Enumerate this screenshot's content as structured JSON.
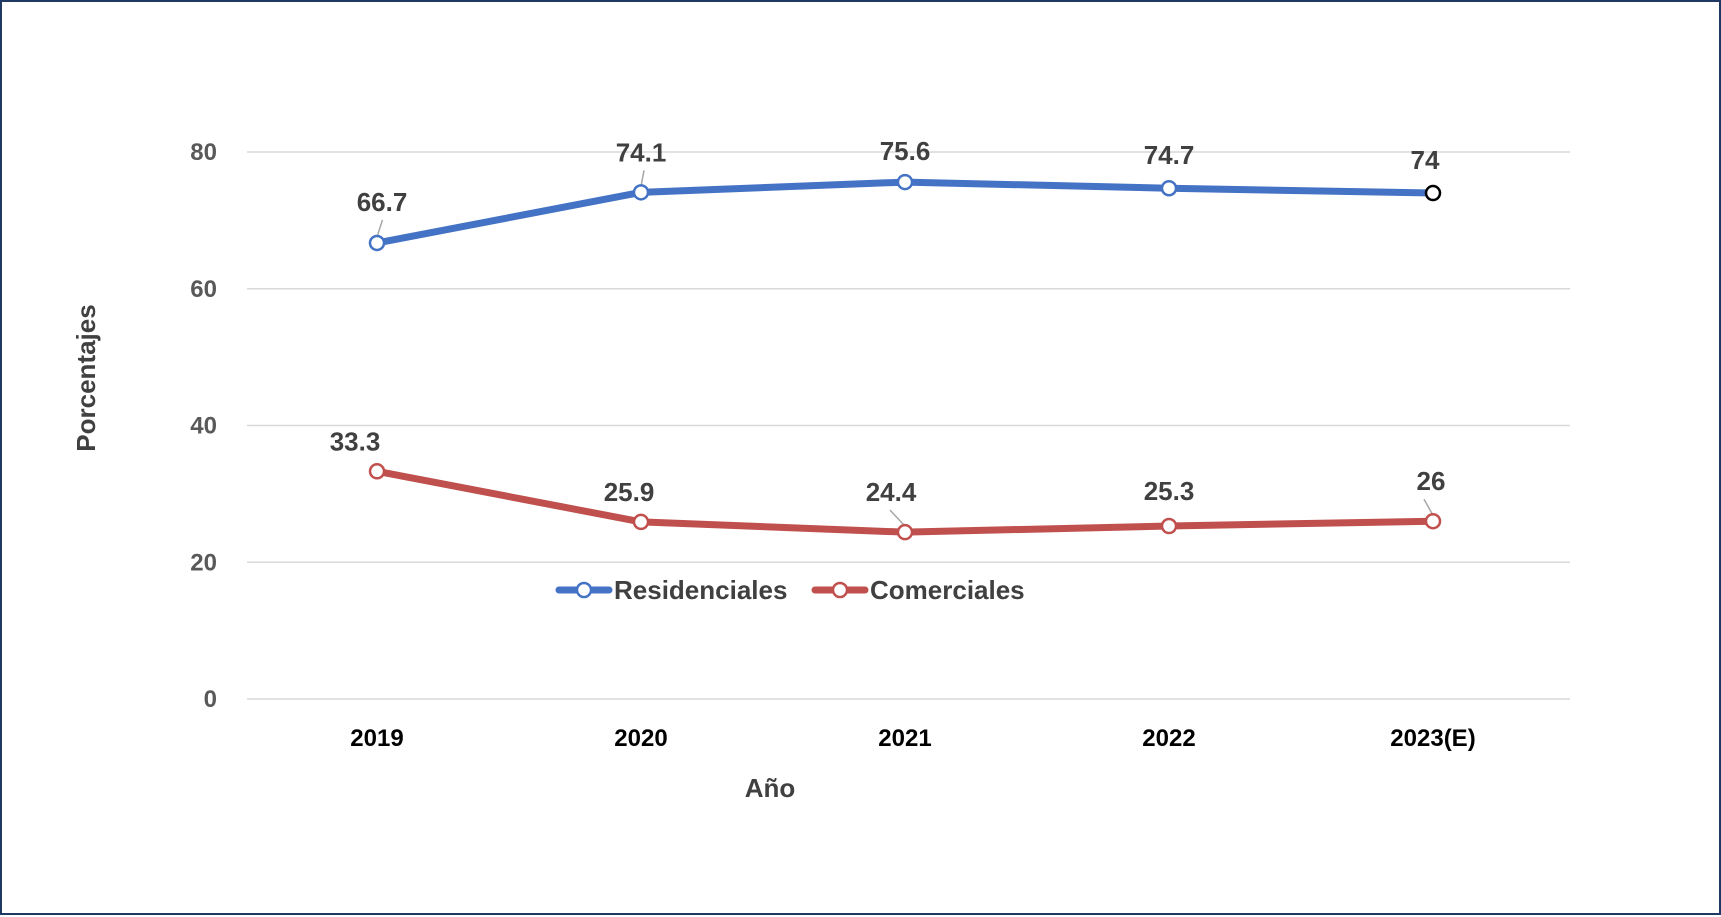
{
  "chart_data": {
    "type": "line",
    "categories": [
      "2019",
      "2020",
      "2021",
      "2022",
      "2023(E)"
    ],
    "series": [
      {
        "name": "Residenciales",
        "values": [
          66.7,
          74.1,
          75.6,
          74.7,
          74
        ],
        "color": "#4472C4"
      },
      {
        "name": "Comerciales",
        "values": [
          33.3,
          25.9,
          24.4,
          25.3,
          26
        ],
        "color": "#C0504D"
      }
    ],
    "data_labels": [
      [
        "66.7",
        "74.1",
        "75.6",
        "74.7",
        "74"
      ],
      [
        "33.3",
        "25.9",
        "24.4",
        "25.3",
        "26"
      ]
    ],
    "title": "",
    "xlabel": "Año",
    "ylabel": "Porcentajes",
    "ylim": [
      0,
      80
    ],
    "yticks": [
      0,
      20,
      40,
      60,
      80
    ],
    "grid": true,
    "legend_position": "bottom-center inside plot"
  }
}
